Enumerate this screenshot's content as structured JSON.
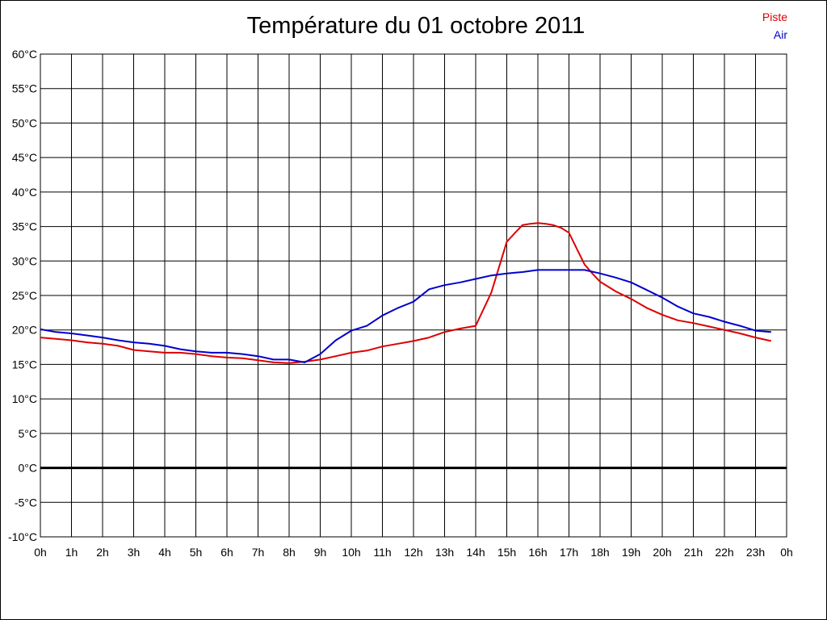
{
  "chart_data": {
    "type": "line",
    "title": "Température du 01 octobre 2011",
    "xlabel": "",
    "ylabel": "",
    "xlim": [
      0,
      24
    ],
    "ylim": [
      -10,
      60
    ],
    "grid": true,
    "legend_position": "top-right",
    "x_tick_labels": [
      "0h",
      "1h",
      "2h",
      "3h",
      "4h",
      "5h",
      "6h",
      "7h",
      "8h",
      "9h",
      "10h",
      "11h",
      "12h",
      "13h",
      "14h",
      "15h",
      "16h",
      "17h",
      "18h",
      "19h",
      "20h",
      "21h",
      "22h",
      "23h",
      "0h"
    ],
    "y_ticks": [
      -10,
      -5,
      0,
      5,
      10,
      15,
      20,
      25,
      30,
      35,
      40,
      45,
      50,
      55,
      60
    ],
    "y_tick_labels": [
      "-10°C",
      "-5°C",
      "0°C",
      "5°C",
      "10°C",
      "15°C",
      "20°C",
      "25°C",
      "30°C",
      "35°C",
      "40°C",
      "45°C",
      "50°C",
      "55°C",
      "60°C"
    ],
    "zero_line": 0,
    "series": [
      {
        "name": "Piste",
        "color": "#dd0000",
        "x": [
          0,
          0.5,
          1,
          1.5,
          2,
          2.5,
          3,
          3.5,
          4,
          4.5,
          5,
          5.5,
          6,
          6.5,
          7,
          7.5,
          8,
          8.5,
          9,
          9.5,
          10,
          10.5,
          11,
          11.5,
          12,
          12.5,
          13,
          13.5,
          14,
          14.5,
          15,
          15.25,
          15.5,
          15.75,
          16,
          16.25,
          16.5,
          16.75,
          17,
          17.25,
          17.5,
          17.75,
          18,
          18.5,
          19,
          19.5,
          20,
          20.5,
          21,
          21.5,
          22,
          22.5,
          23,
          23.5
        ],
        "values": [
          18.9,
          18.7,
          18.5,
          18.2,
          18.0,
          17.7,
          17.1,
          16.9,
          16.7,
          16.7,
          16.5,
          16.2,
          16.0,
          15.9,
          15.6,
          15.3,
          15.2,
          15.4,
          15.7,
          16.2,
          16.7,
          17.0,
          17.6,
          18.0,
          18.4,
          18.9,
          19.7,
          20.2,
          20.6,
          25.4,
          32.8,
          34.0,
          35.2,
          35.4,
          35.5,
          35.4,
          35.2,
          34.8,
          34.1,
          31.8,
          29.5,
          28.2,
          27.0,
          25.6,
          24.5,
          23.2,
          22.2,
          21.4,
          21.0,
          20.5,
          20.0,
          19.5,
          18.9,
          18.4
        ]
      },
      {
        "name": "Air",
        "color": "#0000cc",
        "x": [
          0,
          0.5,
          1,
          1.5,
          2,
          2.5,
          3,
          3.5,
          4,
          4.5,
          5,
          5.5,
          6,
          6.5,
          7,
          7.5,
          8,
          8.5,
          9,
          9.5,
          10,
          10.5,
          11,
          11.5,
          12,
          12.5,
          13,
          13.5,
          14,
          14.5,
          15,
          15.5,
          16,
          16.5,
          17,
          17.5,
          18,
          18.5,
          19,
          19.5,
          20,
          20.5,
          21,
          21.5,
          22,
          22.5,
          23,
          23.5
        ],
        "values": [
          20.1,
          19.7,
          19.5,
          19.2,
          18.9,
          18.5,
          18.2,
          18.0,
          17.7,
          17.2,
          16.9,
          16.7,
          16.7,
          16.5,
          16.2,
          15.7,
          15.7,
          15.3,
          16.5,
          18.5,
          19.9,
          20.6,
          22.1,
          23.2,
          24.1,
          25.9,
          26.5,
          26.9,
          27.4,
          27.9,
          28.2,
          28.4,
          28.7,
          28.7,
          28.7,
          28.7,
          28.2,
          27.6,
          26.9,
          25.8,
          24.7,
          23.4,
          22.4,
          21.9,
          21.2,
          20.6,
          19.9,
          19.7
        ]
      }
    ]
  }
}
